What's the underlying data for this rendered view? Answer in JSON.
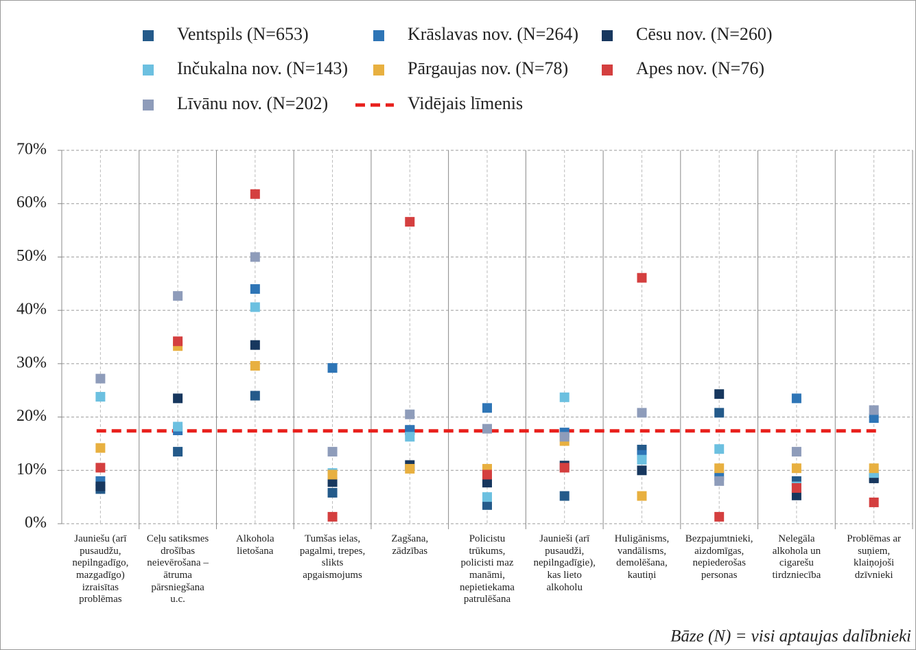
{
  "chart_data": {
    "type": "dot",
    "categories": [
      "Jauniešu (arī\npusaudžu,\nnepilngadīgo,\nmazgadīgo)\nizraisītas\nproblēmas",
      "Ceļu satiksmes\ndrošības\nneievērošana –\nātruma\npārsniegšana\nu.c.",
      "Alkohola\nlietošana",
      "Tumšas ielas,\npagalmi, trepes,\nslikts\napgaismojums",
      "Zagšana,\nzādzības",
      "Policistu\ntrūkums,\npolicisti maz\nmanāmi,\nnepietiekama\npatrulēšana",
      "Jaunieši (arī\npusaudži,\nnepilngadīgie),\nkas lieto\nalkoholu",
      "Huligānisms,\nvandālisms,\ndemolēšana,\nkautiņi",
      "Bezpajumtnieki,\naizdomīgas,\nnepiederošas\npersonas",
      "Nelegāla\nalkohola un\ncigarešu\ntirdzniecība",
      "Problēmas ar\nsuņiem,\nklaiņojoši\ndzīvnieki"
    ],
    "series": [
      {
        "name": "Ventspils (N=653)",
        "color": "#245a8a",
        "values": [
          6.5,
          13.5,
          24,
          5.8,
          17.5,
          3.5,
          5.2,
          13.9,
          20.8,
          8,
          8.7
        ]
      },
      {
        "name": "Krāslavas nov. (N=264)",
        "color": "#2e75b6",
        "values": [
          8,
          17.5,
          44,
          29.2,
          17.6,
          21.7,
          17.1,
          12.9,
          9,
          23.5,
          19.8
        ]
      },
      {
        "name": "Cēsu  nov. (N=260)",
        "color": "#17375e",
        "values": [
          7,
          23.5,
          33.5,
          7.8,
          11,
          7.7,
          10.9,
          10,
          24.3,
          5.3,
          8.5
        ]
      },
      {
        "name": "Inčukalna nov. (N=143)",
        "color": "#6cc0e0",
        "values": [
          23.8,
          18.2,
          40.6,
          9.5,
          16.3,
          5,
          23.7,
          12,
          14,
          7,
          9.5
        ]
      },
      {
        "name": "Pārgaujas nov. (N=78)",
        "color": "#e8b040",
        "values": [
          14.2,
          33.3,
          29.6,
          9.2,
          10.3,
          10.3,
          15.5,
          5.2,
          10.4,
          10.4,
          10.4
        ]
      },
      {
        "name": "Apes nov. (N=76)",
        "color": "#d43f3f",
        "values": [
          10.5,
          34.2,
          61.8,
          1.3,
          56.6,
          9.2,
          10.5,
          46.1,
          1.3,
          6.7,
          4
        ]
      },
      {
        "name": "Līvānu nov. (N=202)",
        "color": "#8e9cba",
        "values": [
          27.2,
          42.7,
          50,
          13.5,
          20.5,
          17.8,
          16.3,
          20.8,
          8,
          13.5,
          21.3
        ]
      }
    ],
    "average": {
      "name": "Vidējais līmenis",
      "value": 17.4,
      "color": "#e8201c"
    },
    "ylim": [
      0,
      70
    ],
    "yticks": [
      {
        "value": 0,
        "label": "0%"
      },
      {
        "value": 10,
        "label": "10%"
      },
      {
        "value": 20,
        "label": "20%"
      },
      {
        "value": 30,
        "label": "30%"
      },
      {
        "value": 40,
        "label": "40%"
      },
      {
        "value": 50,
        "label": "50%"
      },
      {
        "value": 60,
        "label": "60%"
      },
      {
        "value": 70,
        "label": "70%"
      }
    ],
    "grid": true,
    "note": "Bāze (N) = visi aptaujas dalībnieki"
  }
}
